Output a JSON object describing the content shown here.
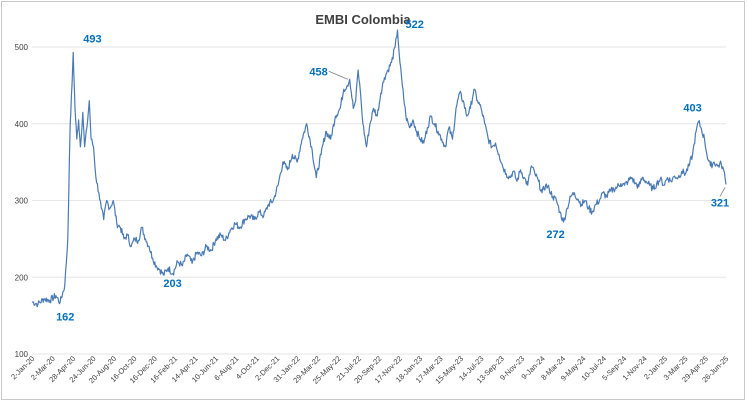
{
  "chart_data": {
    "type": "line",
    "title": "EMBI Colombia",
    "xlabel": "",
    "ylabel": "",
    "ylim": [
      100,
      530
    ],
    "yticks": [
      100,
      200,
      300,
      400,
      500
    ],
    "grid": "horizontal",
    "legend": "none",
    "colors": {
      "line": "#4a7ab5",
      "annotation": "#0070c0",
      "grid": "#e6e6e6",
      "axis_text": "#404040"
    },
    "xticks": [
      "2-Jan-20",
      "2-Mar-20",
      "28-Apr-20",
      "24-Jun-20",
      "20-Aug-20",
      "16-Oct-20",
      "16-Dec-20",
      "16-Feb-21",
      "14-Apr-21",
      "10-Jun-21",
      "6-Aug-21",
      "4-Oct-21",
      "2-Dec-21",
      "31-Jan-22",
      "29-Mar-22",
      "25-May-22",
      "21-Jul-22",
      "20-Sep-22",
      "17-Nov-22",
      "18-Jan-23",
      "17-Mar-23",
      "15-May-23",
      "14-Jul-23",
      "13-Sep-23",
      "9-Nov-23",
      "9-Jan-24",
      "8-Mar-24",
      "9-May-24",
      "10-Jul-24",
      "5-Sep-24",
      "1-Nov-24",
      "2-Jan-25",
      "3-Mar-25",
      "29-Apr-25",
      "26-Jun-25"
    ],
    "series": [
      {
        "values": [
          [
            0,
            168
          ],
          [
            10,
            165
          ],
          [
            20,
            172
          ],
          [
            30,
            170
          ],
          [
            40,
            176
          ],
          [
            47,
            167
          ],
          [
            55,
            190
          ],
          [
            60,
            250
          ],
          [
            64,
            400
          ],
          [
            67,
            450
          ],
          [
            69,
            493
          ],
          [
            72,
            420
          ],
          [
            75,
            380
          ],
          [
            78,
            405
          ],
          [
            81,
            370
          ],
          [
            85,
            415
          ],
          [
            88,
            370
          ],
          [
            92,
            395
          ],
          [
            96,
            430
          ],
          [
            99,
            380
          ],
          [
            103,
            370
          ],
          [
            107,
            330
          ],
          [
            112,
            310
          ],
          [
            116,
            290
          ],
          [
            120,
            275
          ],
          [
            125,
            300
          ],
          [
            130,
            290
          ],
          [
            136,
            300
          ],
          [
            142,
            270
          ],
          [
            148,
            265
          ],
          [
            154,
            250
          ],
          [
            160,
            255
          ],
          [
            166,
            240
          ],
          [
            172,
            250
          ],
          [
            178,
            248
          ],
          [
            184,
            265
          ],
          [
            190,
            250
          ],
          [
            196,
            240
          ],
          [
            202,
            225
          ],
          [
            208,
            215
          ],
          [
            214,
            210
          ],
          [
            220,
            203
          ],
          [
            228,
            212
          ],
          [
            236,
            205
          ],
          [
            244,
            220
          ],
          [
            252,
            215
          ],
          [
            260,
            230
          ],
          [
            268,
            218
          ],
          [
            276,
            232
          ],
          [
            284,
            228
          ],
          [
            292,
            240
          ],
          [
            300,
            235
          ],
          [
            308,
            250
          ],
          [
            316,
            255
          ],
          [
            324,
            248
          ],
          [
            332,
            262
          ],
          [
            340,
            270
          ],
          [
            348,
            265
          ],
          [
            356,
            275
          ],
          [
            364,
            280
          ],
          [
            372,
            275
          ],
          [
            380,
            285
          ],
          [
            388,
            280
          ],
          [
            396,
            295
          ],
          [
            404,
            300
          ],
          [
            412,
            320
          ],
          [
            420,
            350
          ],
          [
            428,
            340
          ],
          [
            436,
            360
          ],
          [
            444,
            350
          ],
          [
            452,
            380
          ],
          [
            460,
            400
          ],
          [
            468,
            370
          ],
          [
            476,
            330
          ],
          [
            484,
            360
          ],
          [
            492,
            390
          ],
          [
            500,
            380
          ],
          [
            508,
            410
          ],
          [
            516,
            420
          ],
          [
            522,
            445
          ],
          [
            528,
            450
          ],
          [
            532,
            458
          ],
          [
            538,
            420
          ],
          [
            542,
            430
          ],
          [
            546,
            470
          ],
          [
            550,
            440
          ],
          [
            554,
            400
          ],
          [
            560,
            370
          ],
          [
            566,
            400
          ],
          [
            572,
            420
          ],
          [
            578,
            410
          ],
          [
            584,
            440
          ],
          [
            590,
            460
          ],
          [
            596,
            470
          ],
          [
            602,
            480
          ],
          [
            608,
            500
          ],
          [
            612,
            522
          ],
          [
            616,
            480
          ],
          [
            620,
            450
          ],
          [
            626,
            410
          ],
          [
            632,
            395
          ],
          [
            638,
            405
          ],
          [
            644,
            390
          ],
          [
            650,
            380
          ],
          [
            656,
            375
          ],
          [
            662,
            395
          ],
          [
            668,
            410
          ],
          [
            674,
            400
          ],
          [
            680,
            390
          ],
          [
            686,
            380
          ],
          [
            692,
            370
          ],
          [
            698,
            395
          ],
          [
            704,
            380
          ],
          [
            710,
            420
          ],
          [
            716,
            440
          ],
          [
            722,
            430
          ],
          [
            728,
            410
          ],
          [
            734,
            420
          ],
          [
            740,
            445
          ],
          [
            746,
            430
          ],
          [
            752,
            420
          ],
          [
            758,
            400
          ],
          [
            764,
            380
          ],
          [
            770,
            370
          ],
          [
            776,
            375
          ],
          [
            782,
            360
          ],
          [
            788,
            345
          ],
          [
            794,
            335
          ],
          [
            800,
            330
          ],
          [
            806,
            338
          ],
          [
            812,
            325
          ],
          [
            818,
            340
          ],
          [
            824,
            330
          ],
          [
            830,
            320
          ],
          [
            836,
            345
          ],
          [
            842,
            335
          ],
          [
            848,
            325
          ],
          [
            854,
            310
          ],
          [
            860,
            320
          ],
          [
            866,
            315
          ],
          [
            872,
            305
          ],
          [
            878,
            300
          ],
          [
            884,
            285
          ],
          [
            890,
            272
          ],
          [
            896,
            290
          ],
          [
            902,
            305
          ],
          [
            908,
            310
          ],
          [
            914,
            302
          ],
          [
            920,
            295
          ],
          [
            926,
            300
          ],
          [
            932,
            290
          ],
          [
            938,
            285
          ],
          [
            944,
            295
          ],
          [
            950,
            300
          ],
          [
            956,
            310
          ],
          [
            962,
            305
          ],
          [
            968,
            312
          ],
          [
            974,
            315
          ],
          [
            980,
            318
          ],
          [
            986,
            322
          ],
          [
            992,
            320
          ],
          [
            998,
            325
          ],
          [
            1004,
            330
          ],
          [
            1010,
            322
          ],
          [
            1016,
            318
          ],
          [
            1022,
            330
          ],
          [
            1028,
            325
          ],
          [
            1034,
            320
          ],
          [
            1040,
            315
          ],
          [
            1046,
            322
          ],
          [
            1052,
            328
          ],
          [
            1058,
            320
          ],
          [
            1064,
            330
          ],
          [
            1070,
            325
          ],
          [
            1076,
            332
          ],
          [
            1082,
            330
          ],
          [
            1088,
            338
          ],
          [
            1094,
            335
          ],
          [
            1100,
            345
          ],
          [
            1106,
            360
          ],
          [
            1112,
            390
          ],
          [
            1116,
            403
          ],
          [
            1120,
            395
          ],
          [
            1126,
            380
          ],
          [
            1130,
            360
          ],
          [
            1136,
            345
          ],
          [
            1142,
            350
          ],
          [
            1148,
            345
          ],
          [
            1154,
            348
          ],
          [
            1158,
            340
          ],
          [
            1162,
            321
          ]
        ]
      }
    ],
    "annotations": [
      {
        "label": "493",
        "x": 69,
        "y": 493
      },
      {
        "label": "162",
        "x": 47,
        "y": 162
      },
      {
        "label": "203",
        "x": 220,
        "y": 203
      },
      {
        "label": "458",
        "x": 532,
        "y": 458
      },
      {
        "label": "522",
        "x": 612,
        "y": 522
      },
      {
        "label": "272",
        "x": 890,
        "y": 272
      },
      {
        "label": "403",
        "x": 1116,
        "y": 403
      },
      {
        "label": "321",
        "x": 1162,
        "y": 321
      }
    ]
  }
}
